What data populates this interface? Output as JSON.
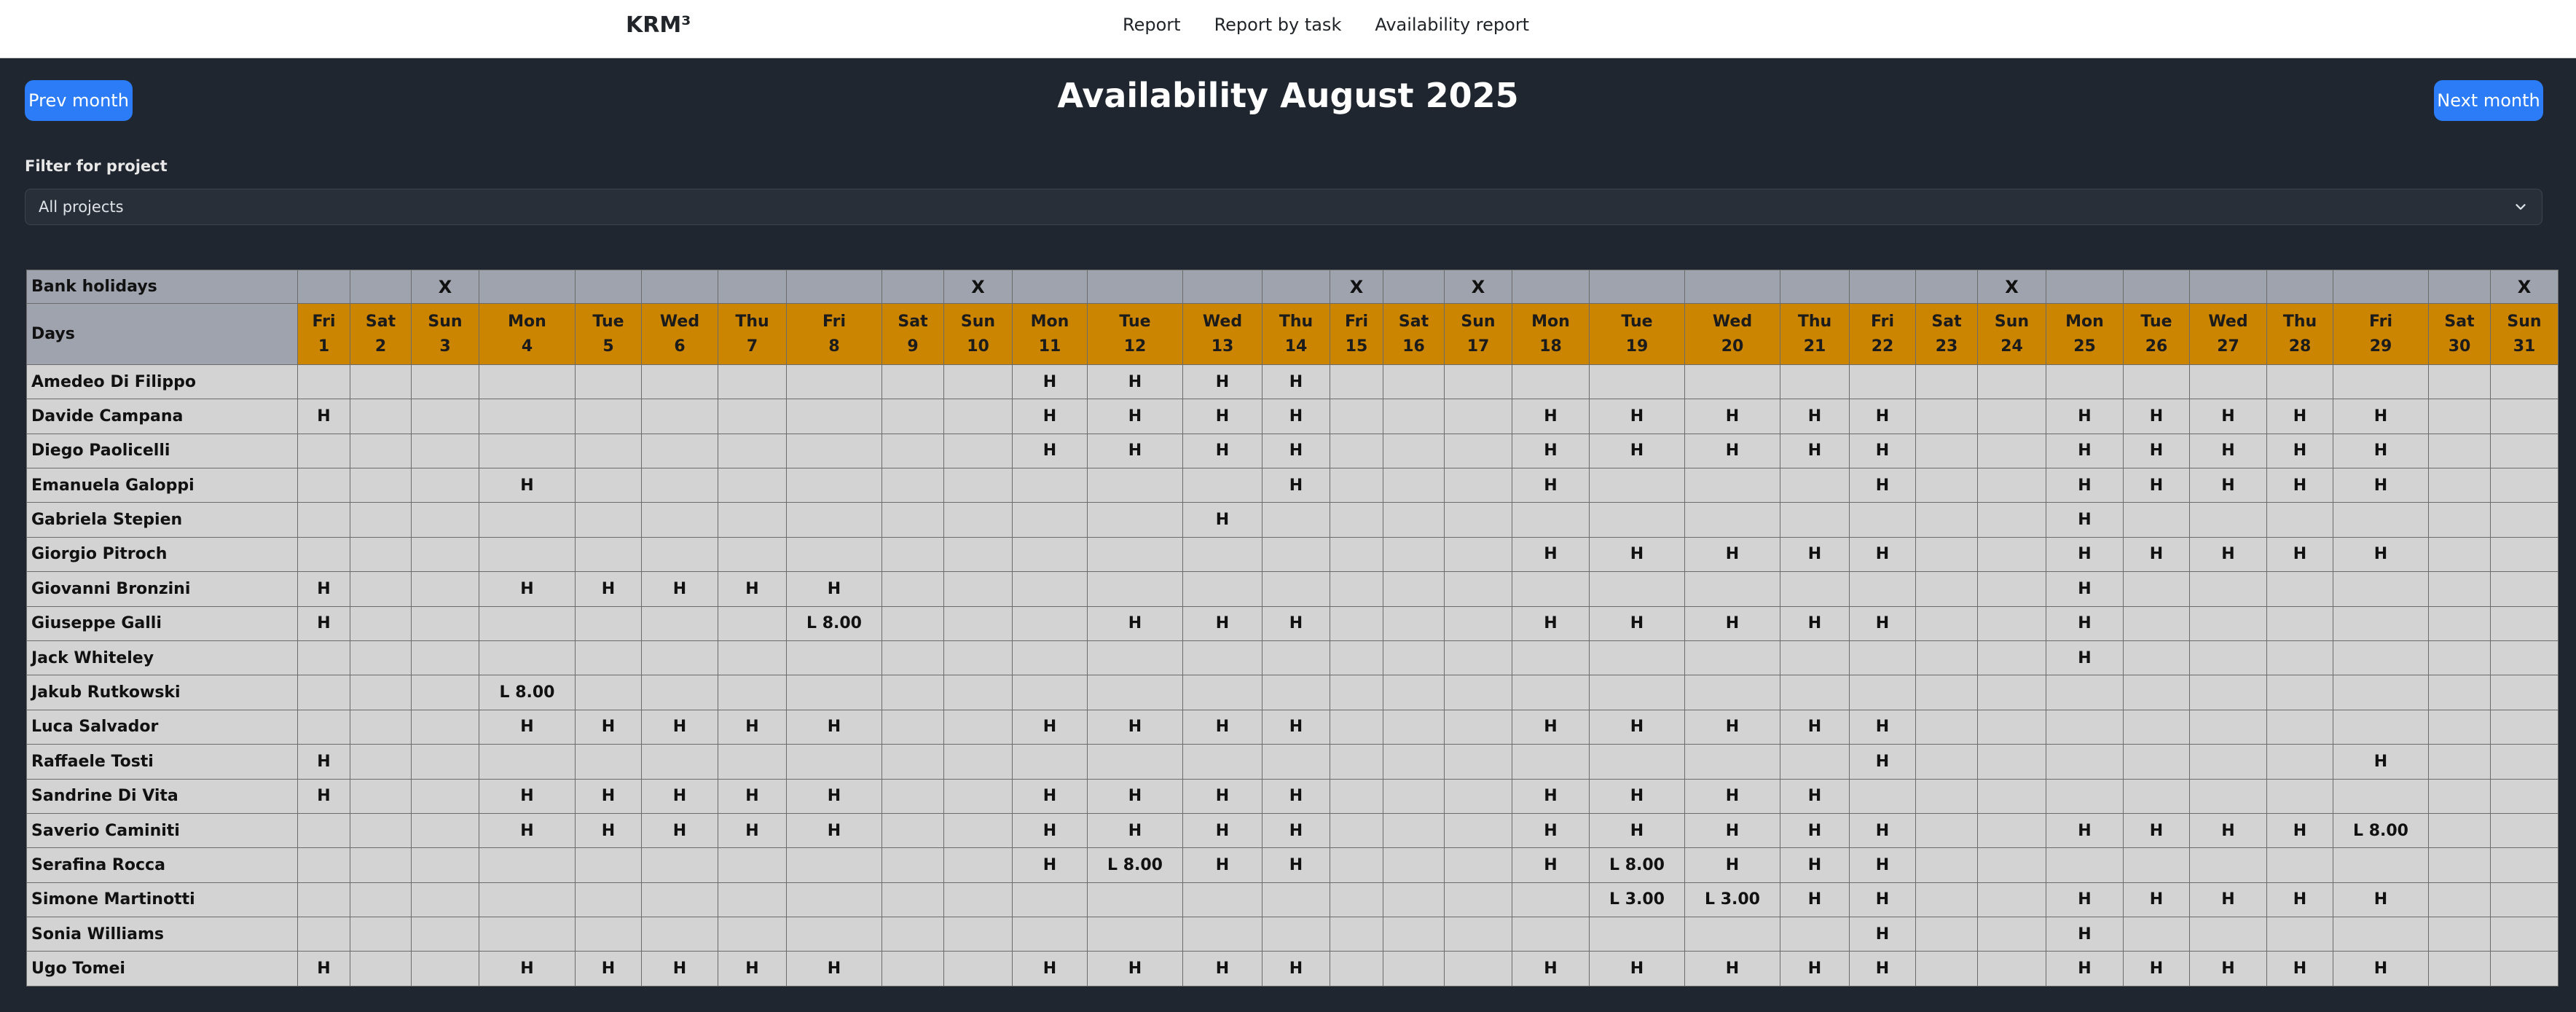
{
  "nav": {
    "brand": "KRM³",
    "links": [
      "Report",
      "Report by task",
      "Availability report"
    ]
  },
  "header": {
    "prev_label": "Prev month",
    "next_label": "Next month",
    "title": "Availability August 2025"
  },
  "filter": {
    "label": "Filter for project",
    "selected": "All projects"
  },
  "colors": {
    "accent": "#2b7cf6",
    "day_header": "#cc8500",
    "bank_holiday_row": "#9ea3ae",
    "cell": "#d3d3d3",
    "background": "#1f262f"
  },
  "table": {
    "holidays_label": "Bank holidays",
    "days_label": "Days",
    "days": [
      {
        "dow": "Fri",
        "num": "1",
        "holiday": ""
      },
      {
        "dow": "Sat",
        "num": "2",
        "holiday": ""
      },
      {
        "dow": "Sun",
        "num": "3",
        "holiday": "X"
      },
      {
        "dow": "Mon",
        "num": "4",
        "holiday": ""
      },
      {
        "dow": "Tue",
        "num": "5",
        "holiday": ""
      },
      {
        "dow": "Wed",
        "num": "6",
        "holiday": ""
      },
      {
        "dow": "Thu",
        "num": "7",
        "holiday": ""
      },
      {
        "dow": "Fri",
        "num": "8",
        "holiday": ""
      },
      {
        "dow": "Sat",
        "num": "9",
        "holiday": ""
      },
      {
        "dow": "Sun",
        "num": "10",
        "holiday": "X"
      },
      {
        "dow": "Mon",
        "num": "11",
        "holiday": ""
      },
      {
        "dow": "Tue",
        "num": "12",
        "holiday": ""
      },
      {
        "dow": "Wed",
        "num": "13",
        "holiday": ""
      },
      {
        "dow": "Thu",
        "num": "14",
        "holiday": ""
      },
      {
        "dow": "Fri",
        "num": "15",
        "holiday": "X"
      },
      {
        "dow": "Sat",
        "num": "16",
        "holiday": ""
      },
      {
        "dow": "Sun",
        "num": "17",
        "holiday": "X"
      },
      {
        "dow": "Mon",
        "num": "18",
        "holiday": ""
      },
      {
        "dow": "Tue",
        "num": "19",
        "holiday": ""
      },
      {
        "dow": "Wed",
        "num": "20",
        "holiday": ""
      },
      {
        "dow": "Thu",
        "num": "21",
        "holiday": ""
      },
      {
        "dow": "Fri",
        "num": "22",
        "holiday": ""
      },
      {
        "dow": "Sat",
        "num": "23",
        "holiday": ""
      },
      {
        "dow": "Sun",
        "num": "24",
        "holiday": "X"
      },
      {
        "dow": "Mon",
        "num": "25",
        "holiday": ""
      },
      {
        "dow": "Tue",
        "num": "26",
        "holiday": ""
      },
      {
        "dow": "Wed",
        "num": "27",
        "holiday": ""
      },
      {
        "dow": "Thu",
        "num": "28",
        "holiday": ""
      },
      {
        "dow": "Fri",
        "num": "29",
        "holiday": ""
      },
      {
        "dow": "Sat",
        "num": "30",
        "holiday": ""
      },
      {
        "dow": "Sun",
        "num": "31",
        "holiday": "X"
      }
    ],
    "people": [
      {
        "name": "Amedeo Di Filippo",
        "cells": [
          "",
          "",
          "",
          "",
          "",
          "",
          "",
          "",
          "",
          "",
          "H",
          "H",
          "H",
          "H",
          "",
          "",
          "",
          "",
          "",
          "",
          "",
          "",
          "",
          "",
          "",
          "",
          "",
          "",
          "",
          "",
          ""
        ]
      },
      {
        "name": "Davide Campana",
        "cells": [
          "H",
          "",
          "",
          "",
          "",
          "",
          "",
          "",
          "",
          "",
          "H",
          "H",
          "H",
          "H",
          "",
          "",
          "",
          "H",
          "H",
          "H",
          "H",
          "H",
          "",
          "",
          "H",
          "H",
          "H",
          "H",
          "H",
          "",
          ""
        ]
      },
      {
        "name": "Diego Paolicelli",
        "cells": [
          "",
          "",
          "",
          "",
          "",
          "",
          "",
          "",
          "",
          "",
          "H",
          "H",
          "H",
          "H",
          "",
          "",
          "",
          "H",
          "H",
          "H",
          "H",
          "H",
          "",
          "",
          "H",
          "H",
          "H",
          "H",
          "H",
          "",
          ""
        ]
      },
      {
        "name": "Emanuela Galoppi",
        "cells": [
          "",
          "",
          "",
          "H",
          "",
          "",
          "",
          "",
          "",
          "",
          "",
          "",
          "",
          "H",
          "",
          "",
          "",
          "H",
          "",
          "",
          "",
          "H",
          "",
          "",
          "H",
          "H",
          "H",
          "H",
          "H",
          "",
          ""
        ]
      },
      {
        "name": "Gabriela Stepien",
        "cells": [
          "",
          "",
          "",
          "",
          "",
          "",
          "",
          "",
          "",
          "",
          "",
          "",
          "H",
          "",
          "",
          "",
          "",
          "",
          "",
          "",
          "",
          "",
          "",
          "",
          "H",
          "",
          "",
          "",
          "",
          "",
          ""
        ]
      },
      {
        "name": "Giorgio Pitroch",
        "cells": [
          "",
          "",
          "",
          "",
          "",
          "",
          "",
          "",
          "",
          "",
          "",
          "",
          "",
          "",
          "",
          "",
          "",
          "H",
          "H",
          "H",
          "H",
          "H",
          "",
          "",
          "H",
          "H",
          "H",
          "H",
          "H",
          "",
          ""
        ]
      },
      {
        "name": "Giovanni Bronzini",
        "cells": [
          "H",
          "",
          "",
          "H",
          "H",
          "H",
          "H",
          "H",
          "",
          "",
          "",
          "",
          "",
          "",
          "",
          "",
          "",
          "",
          "",
          "",
          "",
          "",
          "",
          "",
          "H",
          "",
          "",
          "",
          "",
          "",
          ""
        ]
      },
      {
        "name": "Giuseppe Galli",
        "cells": [
          "H",
          "",
          "",
          "",
          "",
          "",
          "",
          "L 8.00",
          "",
          "",
          "",
          "H",
          "H",
          "H",
          "",
          "",
          "",
          "H",
          "H",
          "H",
          "H",
          "H",
          "",
          "",
          "H",
          "",
          "",
          "",
          "",
          "",
          ""
        ]
      },
      {
        "name": "Jack Whiteley",
        "cells": [
          "",
          "",
          "",
          "",
          "",
          "",
          "",
          "",
          "",
          "",
          "",
          "",
          "",
          "",
          "",
          "",
          "",
          "",
          "",
          "",
          "",
          "",
          "",
          "",
          "H",
          "",
          "",
          "",
          "",
          "",
          ""
        ]
      },
      {
        "name": "Jakub Rutkowski",
        "cells": [
          "",
          "",
          "",
          "L 8.00",
          "",
          "",
          "",
          "",
          "",
          "",
          "",
          "",
          "",
          "",
          "",
          "",
          "",
          "",
          "",
          "",
          "",
          "",
          "",
          "",
          "",
          "",
          "",
          "",
          "",
          "",
          ""
        ]
      },
      {
        "name": "Luca Salvador",
        "cells": [
          "",
          "",
          "",
          "H",
          "H",
          "H",
          "H",
          "H",
          "",
          "",
          "H",
          "H",
          "H",
          "H",
          "",
          "",
          "",
          "H",
          "H",
          "H",
          "H",
          "H",
          "",
          "",
          "",
          "",
          "",
          "",
          "",
          "",
          ""
        ]
      },
      {
        "name": "Raffaele Tosti",
        "cells": [
          "H",
          "",
          "",
          "",
          "",
          "",
          "",
          "",
          "",
          "",
          "",
          "",
          "",
          "",
          "",
          "",
          "",
          "",
          "",
          "",
          "",
          "H",
          "",
          "",
          "",
          "",
          "",
          "",
          "H",
          "",
          ""
        ]
      },
      {
        "name": "Sandrine Di Vita",
        "cells": [
          "H",
          "",
          "",
          "H",
          "H",
          "H",
          "H",
          "H",
          "",
          "",
          "H",
          "H",
          "H",
          "H",
          "",
          "",
          "",
          "H",
          "H",
          "H",
          "H",
          "",
          "",
          "",
          "",
          "",
          "",
          "",
          "",
          "",
          ""
        ]
      },
      {
        "name": "Saverio Caminiti",
        "cells": [
          "",
          "",
          "",
          "H",
          "H",
          "H",
          "H",
          "H",
          "",
          "",
          "H",
          "H",
          "H",
          "H",
          "",
          "",
          "",
          "H",
          "H",
          "H",
          "H",
          "H",
          "",
          "",
          "H",
          "H",
          "H",
          "H",
          "L 8.00",
          "",
          ""
        ]
      },
      {
        "name": "Serafina Rocca",
        "cells": [
          "",
          "",
          "",
          "",
          "",
          "",
          "",
          "",
          "",
          "",
          "H",
          "L 8.00",
          "H",
          "H",
          "",
          "",
          "",
          "H",
          "L 8.00",
          "H",
          "H",
          "H",
          "",
          "",
          "",
          "",
          "",
          "",
          "",
          "",
          ""
        ]
      },
      {
        "name": "Simone Martinotti",
        "cells": [
          "",
          "",
          "",
          "",
          "",
          "",
          "",
          "",
          "",
          "",
          "",
          "",
          "",
          "",
          "",
          "",
          "",
          "",
          "L 3.00",
          "L 3.00",
          "H",
          "H",
          "",
          "",
          "H",
          "H",
          "H",
          "H",
          "H",
          "",
          ""
        ]
      },
      {
        "name": "Sonia Williams",
        "cells": [
          "",
          "",
          "",
          "",
          "",
          "",
          "",
          "",
          "",
          "",
          "",
          "",
          "",
          "",
          "",
          "",
          "",
          "",
          "",
          "",
          "",
          "H",
          "",
          "",
          "H",
          "",
          "",
          "",
          "",
          "",
          ""
        ]
      },
      {
        "name": "Ugo Tomei",
        "cells": [
          "H",
          "",
          "",
          "H",
          "H",
          "H",
          "H",
          "H",
          "",
          "",
          "H",
          "H",
          "H",
          "H",
          "",
          "",
          "",
          "H",
          "H",
          "H",
          "H",
          "H",
          "",
          "",
          "H",
          "H",
          "H",
          "H",
          "H",
          "",
          ""
        ]
      }
    ]
  }
}
